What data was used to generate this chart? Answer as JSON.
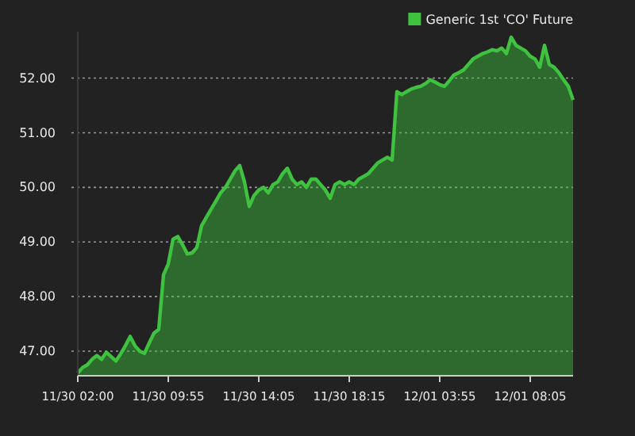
{
  "chart_data": {
    "type": "area",
    "categories": [
      "11/30 02:00",
      null,
      null,
      null,
      null,
      null,
      null,
      null,
      null,
      null,
      null,
      null,
      null,
      null,
      null,
      null,
      null,
      null,
      null,
      "11/30 09:55",
      null,
      null,
      null,
      null,
      null,
      null,
      null,
      null,
      null,
      null,
      null,
      null,
      null,
      null,
      null,
      null,
      null,
      null,
      "11/30 14:05",
      null,
      null,
      null,
      null,
      null,
      null,
      null,
      null,
      null,
      null,
      null,
      null,
      null,
      null,
      null,
      null,
      null,
      null,
      "11/30 18:15",
      null,
      null,
      null,
      null,
      null,
      null,
      null,
      null,
      null,
      null,
      null,
      null,
      null,
      null,
      null,
      null,
      null,
      null,
      "12/01 03:55",
      null,
      null,
      null,
      null,
      null,
      null,
      null,
      null,
      null,
      null,
      null,
      null,
      null,
      null,
      null,
      null,
      null,
      null,
      "12/01 08:05",
      null,
      null,
      null,
      null,
      null,
      null,
      null,
      null,
      null
    ],
    "series": [
      {
        "name": "Generic 1st 'CO' Future",
        "color": "#3fc23f",
        "values": [
          46.6,
          46.7,
          46.75,
          46.85,
          46.92,
          46.85,
          46.98,
          46.9,
          46.82,
          46.95,
          47.1,
          47.27,
          47.1,
          47.0,
          46.96,
          47.15,
          47.33,
          47.4,
          48.4,
          48.6,
          49.05,
          49.1,
          48.95,
          48.78,
          48.8,
          48.9,
          49.3,
          49.45,
          49.6,
          49.75,
          49.9,
          50.0,
          50.15,
          50.3,
          50.4,
          50.1,
          49.65,
          49.85,
          49.95,
          50.0,
          49.9,
          50.05,
          50.1,
          50.25,
          50.35,
          50.15,
          50.05,
          50.1,
          50.0,
          50.15,
          50.15,
          50.05,
          49.95,
          49.8,
          50.05,
          50.1,
          50.05,
          50.1,
          50.05,
          50.15,
          50.2,
          50.25,
          50.35,
          50.45,
          50.5,
          50.55,
          50.5,
          51.75,
          51.7,
          51.75,
          51.8,
          51.83,
          51.85,
          51.9,
          51.97,
          51.93,
          51.88,
          51.85,
          51.95,
          52.06,
          52.1,
          52.15,
          52.25,
          52.35,
          52.4,
          52.45,
          52.48,
          52.52,
          52.5,
          52.55,
          52.45,
          52.75,
          52.6,
          52.55,
          52.5,
          52.4,
          52.35,
          52.2,
          52.6,
          52.25,
          52.2,
          52.1,
          51.97,
          51.85,
          51.6
        ]
      }
    ],
    "ylim": [
      46.55,
      52.85
    ],
    "yticks": [
      {
        "value": 47,
        "label": "47.00"
      },
      {
        "value": 48,
        "label": "48.00"
      },
      {
        "value": 49,
        "label": "49.00"
      },
      {
        "value": 50,
        "label": "50.00"
      },
      {
        "value": 51,
        "label": "51.00"
      },
      {
        "value": 52,
        "label": "52.00"
      }
    ],
    "grid": "y",
    "legend": "top right"
  }
}
